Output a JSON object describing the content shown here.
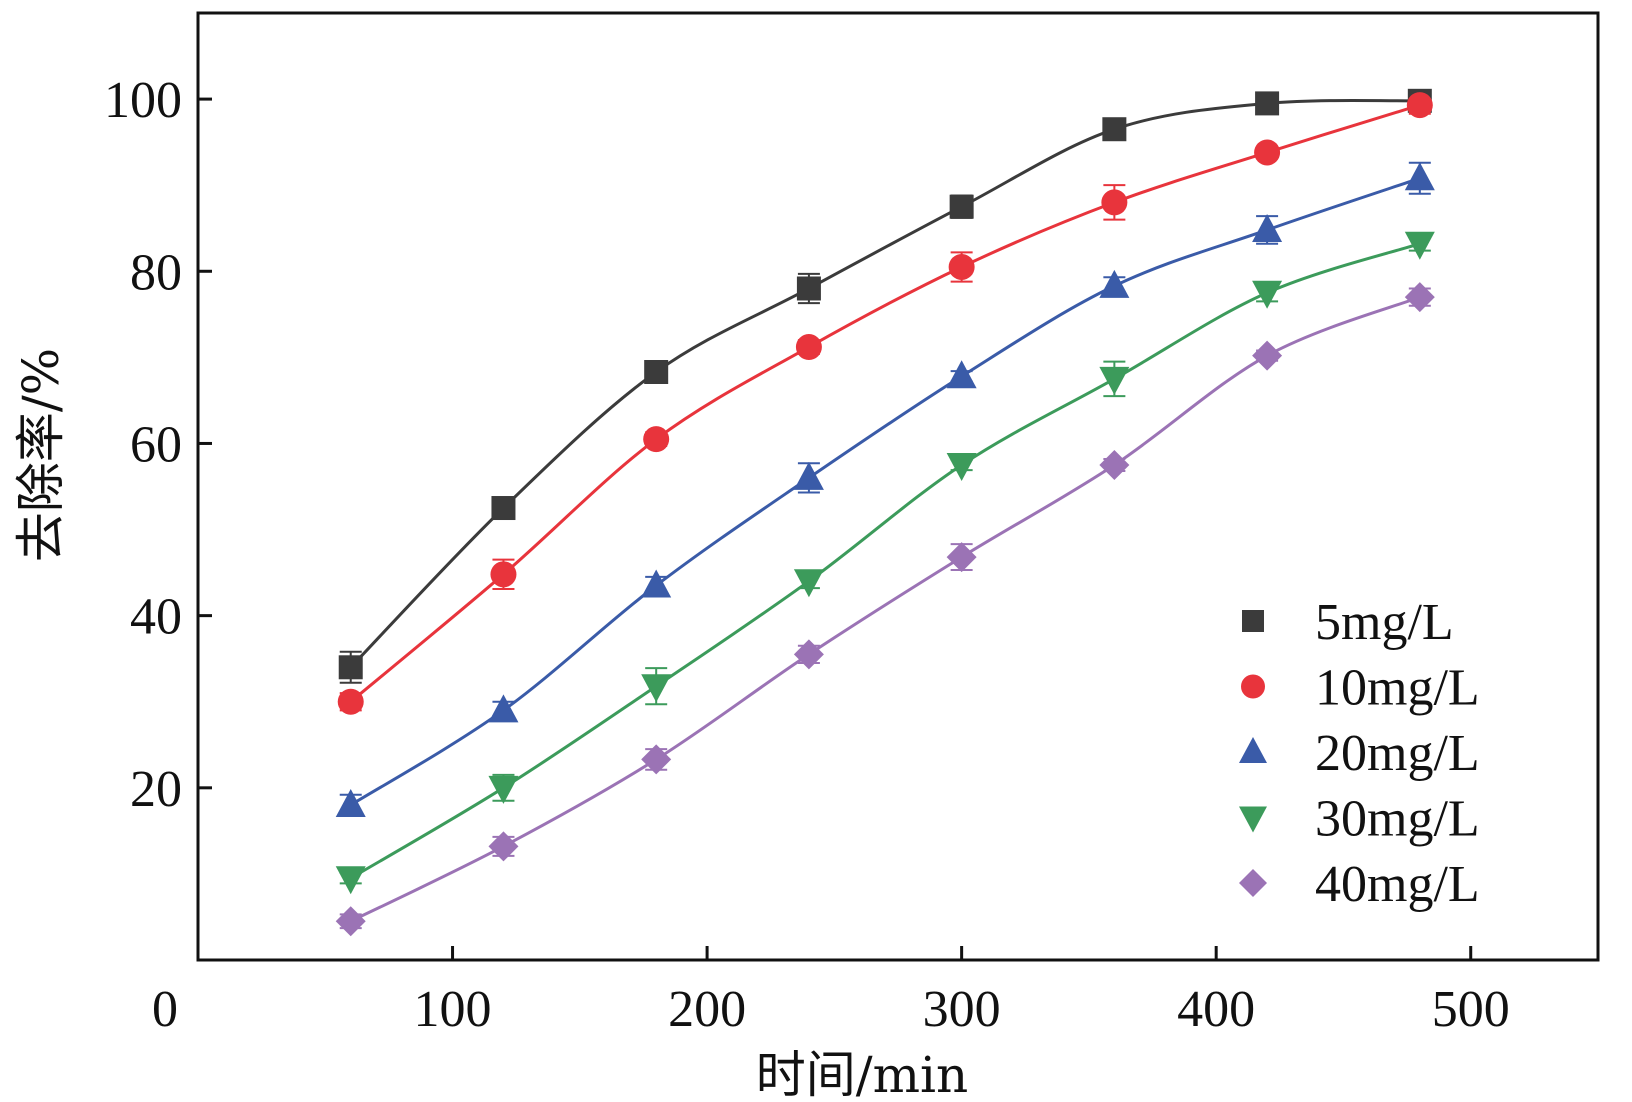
{
  "chart_data": {
    "type": "line",
    "title": "",
    "xlabel": "时间/min",
    "ylabel": "去除率/%",
    "xlim": [
      0,
      550
    ],
    "ylim": [
      0,
      110
    ],
    "origin_label": "0",
    "xticks": [
      100,
      200,
      300,
      400,
      500
    ],
    "xtick_labels": [
      "100",
      "200",
      "300",
      "400",
      "500"
    ],
    "yticks": [
      20,
      40,
      60,
      80,
      100
    ],
    "ytick_labels": [
      "20",
      "40",
      "60",
      "80",
      "100"
    ],
    "grid": false,
    "legend_position": "bottom-right",
    "x": [
      60,
      120,
      180,
      240,
      300,
      360,
      420,
      480
    ],
    "series": [
      {
        "name": "5mg/L",
        "color": "#3b3b3b",
        "marker": "square",
        "values": [
          34.0,
          52.5,
          68.3,
          78.0,
          87.5,
          96.5,
          99.5,
          99.8
        ],
        "errors": [
          1.8,
          0.8,
          0.7,
          1.7,
          1.3,
          0.8,
          0.6,
          0.6
        ]
      },
      {
        "name": "10mg/L",
        "color": "#e8343c",
        "marker": "circle",
        "values": [
          30.0,
          44.8,
          60.5,
          71.2,
          80.5,
          88.0,
          93.8,
          99.3
        ],
        "errors": [
          1.0,
          1.7,
          0.8,
          0.8,
          1.7,
          2.0,
          0.6,
          1.0
        ]
      },
      {
        "name": "20mg/L",
        "color": "#3a5ba8",
        "marker": "triangle-up",
        "values": [
          18.0,
          29.0,
          43.5,
          56.0,
          67.8,
          78.3,
          84.8,
          90.8
        ],
        "errors": [
          1.2,
          1.0,
          1.0,
          1.7,
          0.6,
          1.0,
          1.6,
          1.8
        ]
      },
      {
        "name": "30mg/L",
        "color": "#3c9b5b",
        "marker": "triangle-down",
        "values": [
          9.5,
          20.0,
          31.8,
          44.0,
          57.5,
          67.5,
          77.5,
          83.2
        ],
        "errors": [
          0.6,
          1.5,
          2.1,
          0.8,
          0.6,
          2.0,
          1.0,
          0.8
        ]
      },
      {
        "name": "40mg/L",
        "color": "#9b73b5",
        "marker": "diamond",
        "values": [
          4.5,
          13.2,
          23.3,
          35.5,
          46.8,
          57.5,
          70.2,
          77.0
        ],
        "errors": [
          0.8,
          1.1,
          1.2,
          1.0,
          1.5,
          0.7,
          0.6,
          1.0
        ]
      }
    ]
  }
}
